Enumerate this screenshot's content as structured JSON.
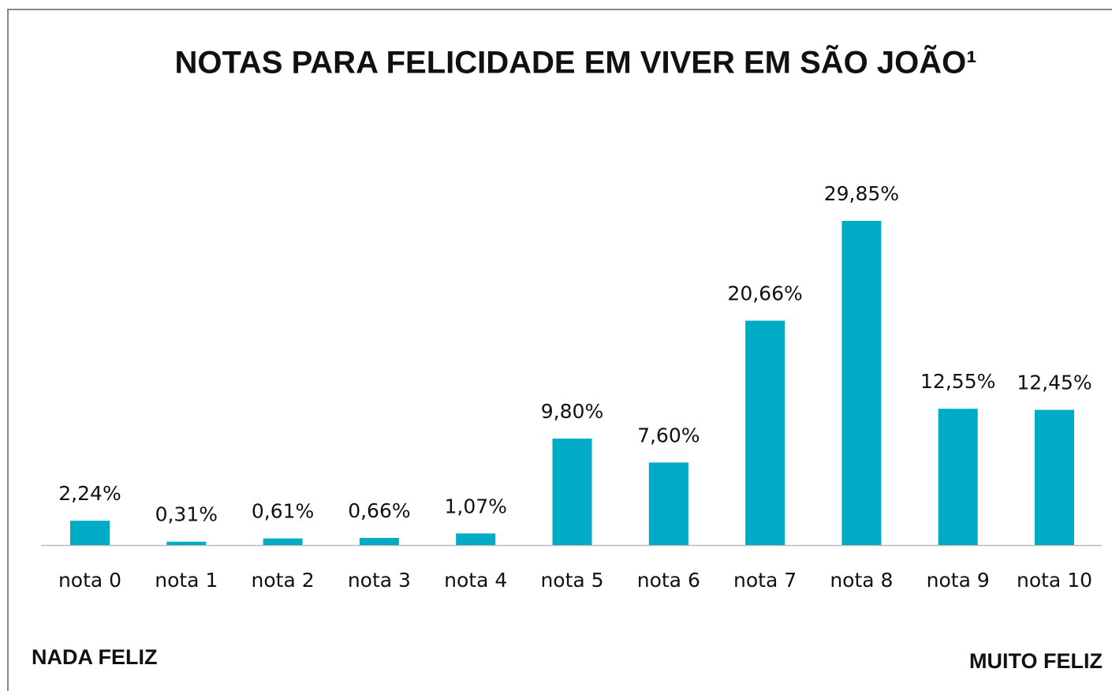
{
  "chart_data": {
    "type": "bar",
    "title": "NOTAS PARA FELICIDADE EM VIVER EM SÃO JOÃO¹",
    "categories": [
      "nota 0",
      "nota 1",
      "nota 2",
      "nota 3",
      "nota 4",
      "nota 5",
      "nota 6",
      "nota 7",
      "nota 8",
      "nota 9",
      "nota 10"
    ],
    "values": [
      2.24,
      0.31,
      0.61,
      0.66,
      1.07,
      9.8,
      7.6,
      20.66,
      29.85,
      12.55,
      12.45
    ],
    "value_labels": [
      "2,24%",
      "0,31%",
      "0,61%",
      "0,66%",
      "1,07%",
      "9,80%",
      "7,60%",
      "20,66%",
      "29,85%",
      "12,55%",
      "12,45%"
    ],
    "color": "#00abc5",
    "annotations": [
      "NADA FELIZ",
      "MUITO FELIZ"
    ]
  }
}
